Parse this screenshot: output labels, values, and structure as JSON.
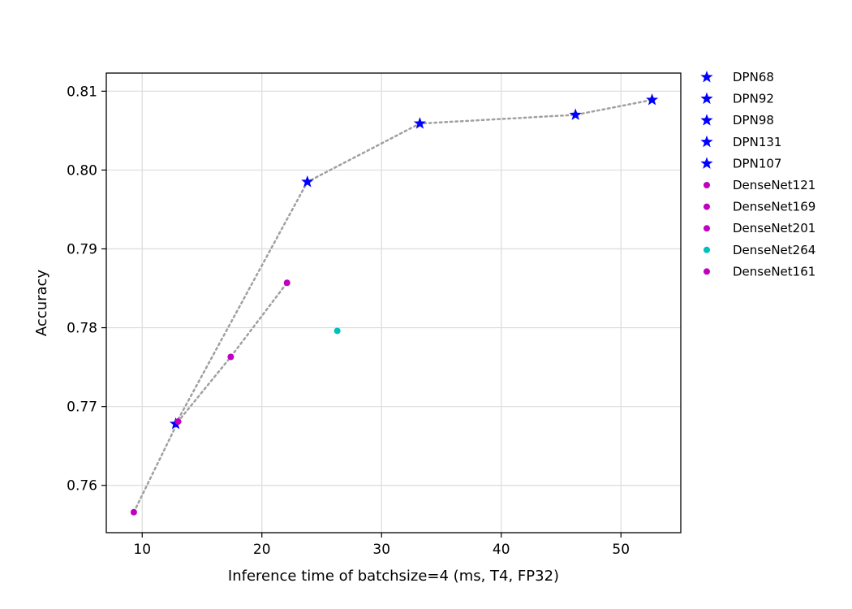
{
  "chart_data": {
    "type": "scatter",
    "xlabel": "Inference time of batchsize=4 (ms, T4, FP32)",
    "ylabel": "Accuracy",
    "xlim": [
      7,
      55
    ],
    "ylim": [
      0.754,
      0.8123
    ],
    "xticks": [
      "10",
      "20",
      "30",
      "40",
      "50"
    ],
    "yticks": [
      "0.76",
      "0.77",
      "0.78",
      "0.79",
      "0.80",
      "0.81"
    ],
    "grid": true,
    "legend_position": "outside-right",
    "series": [
      {
        "name": "DPN68",
        "x": 12.8,
        "y": 0.7678,
        "marker": "star",
        "color": "#0000ff"
      },
      {
        "name": "DPN92",
        "x": 23.8,
        "y": 0.7985,
        "marker": "star",
        "color": "#0000ff"
      },
      {
        "name": "DPN98",
        "x": 33.2,
        "y": 0.8059,
        "marker": "star",
        "color": "#0000ff"
      },
      {
        "name": "DPN131",
        "x": 46.2,
        "y": 0.807,
        "marker": "star",
        "color": "#0000ff"
      },
      {
        "name": "DPN107",
        "x": 52.6,
        "y": 0.8089,
        "marker": "star",
        "color": "#0000ff"
      },
      {
        "name": "DenseNet121",
        "x": 9.3,
        "y": 0.7566,
        "marker": "circle",
        "color": "#bf00bf"
      },
      {
        "name": "DenseNet169",
        "x": 13.0,
        "y": 0.7681,
        "marker": "circle",
        "color": "#bf00bf"
      },
      {
        "name": "DenseNet201",
        "x": 17.4,
        "y": 0.7763,
        "marker": "circle",
        "color": "#bf00bf"
      },
      {
        "name": "DenseNet264",
        "x": 26.3,
        "y": 0.7796,
        "marker": "circle",
        "color": "#00bfbf"
      },
      {
        "name": "DenseNet161",
        "x": 22.1,
        "y": 0.7857,
        "marker": "circle",
        "color": "#bf00bf"
      }
    ],
    "connecting_lines": [
      {
        "members": [
          "DPN68",
          "DPN92",
          "DPN98",
          "DPN131",
          "DPN107"
        ],
        "style": "dotted",
        "color": "#a0a0a0"
      },
      {
        "members": [
          "DenseNet121",
          "DenseNet169",
          "DenseNet201",
          "DenseNet161"
        ],
        "style": "dotted",
        "color": "#a0a0a0"
      }
    ]
  }
}
